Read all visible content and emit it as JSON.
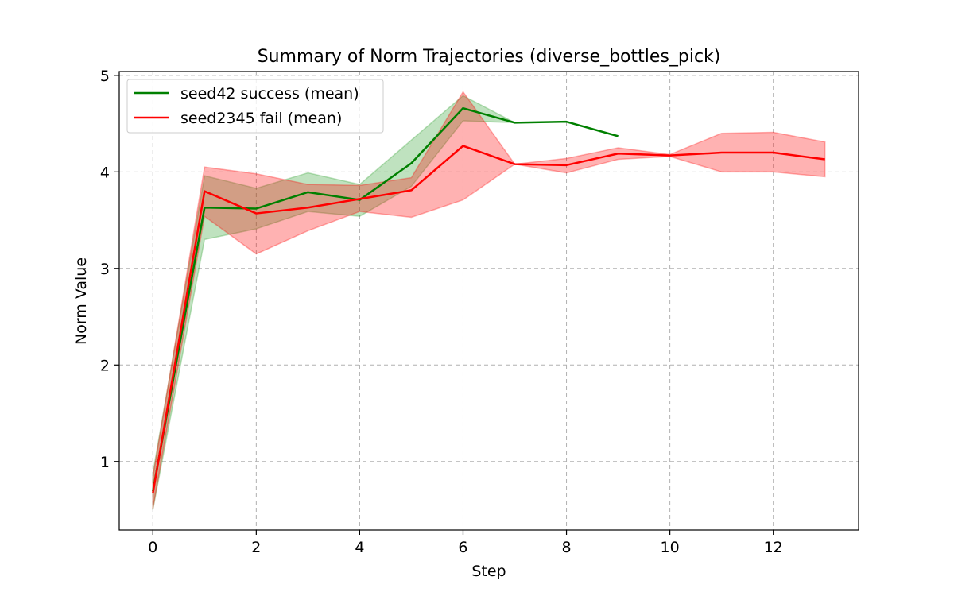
{
  "chart_data": {
    "type": "line",
    "title": "Summary of Norm Trajectories (diverse_bottles_pick)",
    "xlabel": "Step",
    "ylabel": "Norm Value",
    "xlim": [
      -0.65,
      13.65
    ],
    "ylim": [
      0.29,
      5.04
    ],
    "xticks": [
      0,
      2,
      4,
      6,
      8,
      10,
      12
    ],
    "yticks": [
      1,
      2,
      3,
      4,
      5
    ],
    "grid": true,
    "legend_position": "upper left",
    "series": [
      {
        "name": "seed42 success (mean)",
        "color": "#008000",
        "band_color": "#2ca02c",
        "x": [
          0,
          1,
          2,
          3,
          4,
          5,
          6,
          7,
          8,
          9
        ],
        "mean": [
          0.69,
          3.63,
          3.62,
          3.79,
          3.71,
          4.09,
          4.66,
          4.51,
          4.52,
          4.37
        ],
        "upper": [
          0.88,
          3.96,
          3.83,
          3.99,
          3.87,
          4.33,
          4.79,
          4.51,
          4.52,
          4.37
        ],
        "lower": [
          0.5,
          3.3,
          3.41,
          3.59,
          3.54,
          3.85,
          4.53,
          4.51,
          4.52,
          4.37
        ]
      },
      {
        "name": "seed2345 fail (mean)",
        "color": "#ff0000",
        "band_color": "#ff0000",
        "x": [
          0,
          1,
          2,
          3,
          4,
          5,
          6,
          7,
          8,
          9,
          10,
          11,
          12,
          13
        ],
        "mean": [
          0.67,
          3.8,
          3.57,
          3.63,
          3.72,
          3.81,
          4.27,
          4.08,
          4.07,
          4.19,
          4.17,
          4.2,
          4.2,
          4.13
        ],
        "upper": [
          0.84,
          4.05,
          3.98,
          3.87,
          3.86,
          3.94,
          4.83,
          4.08,
          4.14,
          4.25,
          4.18,
          4.4,
          4.41,
          4.31
        ],
        "lower": [
          0.51,
          3.54,
          3.15,
          3.39,
          3.59,
          3.53,
          3.71,
          4.08,
          3.99,
          4.13,
          4.16,
          4.0,
          4.0,
          3.95
        ]
      }
    ]
  }
}
